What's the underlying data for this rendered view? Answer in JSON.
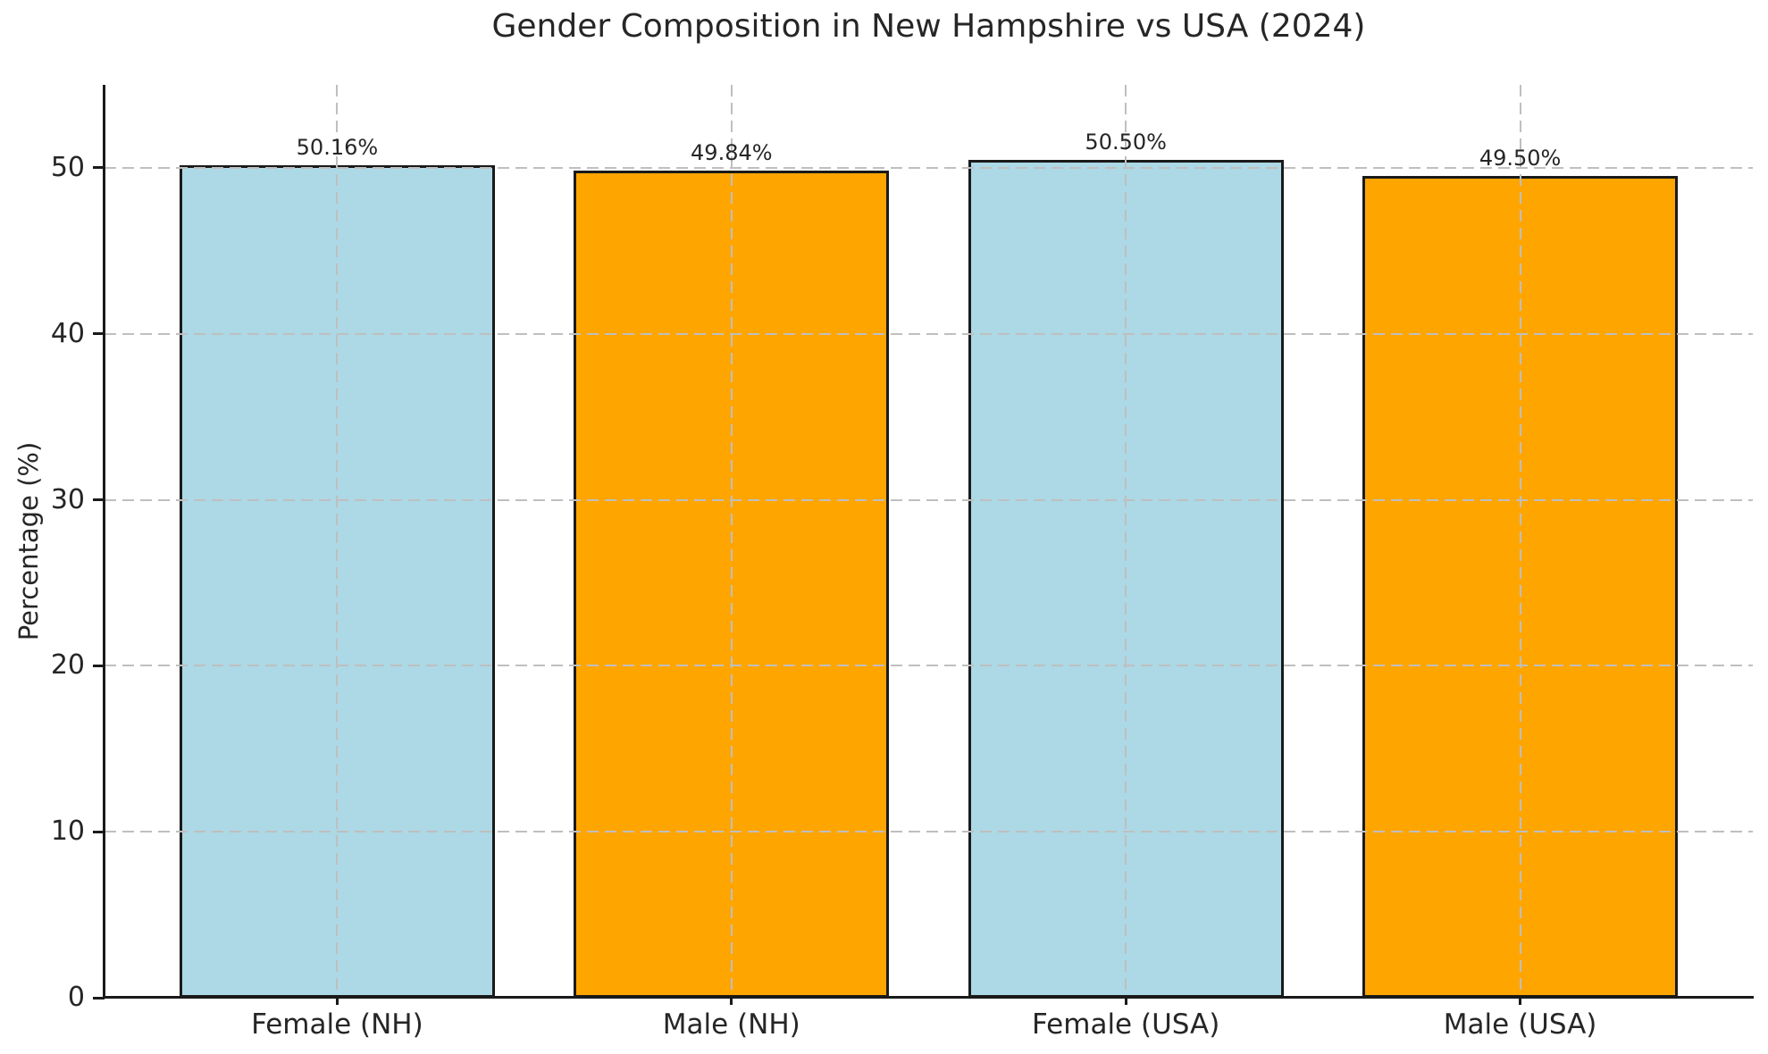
{
  "chart_data": {
    "type": "bar",
    "title": "Gender Composition in New Hampshire vs USA (2024)",
    "categories": [
      "Female (NH)",
      "Male (NH)",
      "Female (USA)",
      "Male (USA)"
    ],
    "values": [
      50.16,
      49.84,
      50.5,
      49.5
    ],
    "value_labels": [
      "50.16%",
      "49.84%",
      "50.50%",
      "49.50%"
    ],
    "bar_colors": [
      "#ADD8E6",
      "#FFA500",
      "#ADD8E6",
      "#FFA500"
    ],
    "bar_edge_color": "#1a1a1a",
    "xlabel": "",
    "ylabel": "Percentage (%)",
    "ylim": [
      0,
      55
    ],
    "yticks": [
      0,
      10,
      20,
      30,
      40,
      50
    ],
    "bar_width_fraction": 0.8,
    "grid": "dashed",
    "grid_color": "#bfbfbf",
    "legend_position": "none",
    "background_color": "#ffffff"
  }
}
